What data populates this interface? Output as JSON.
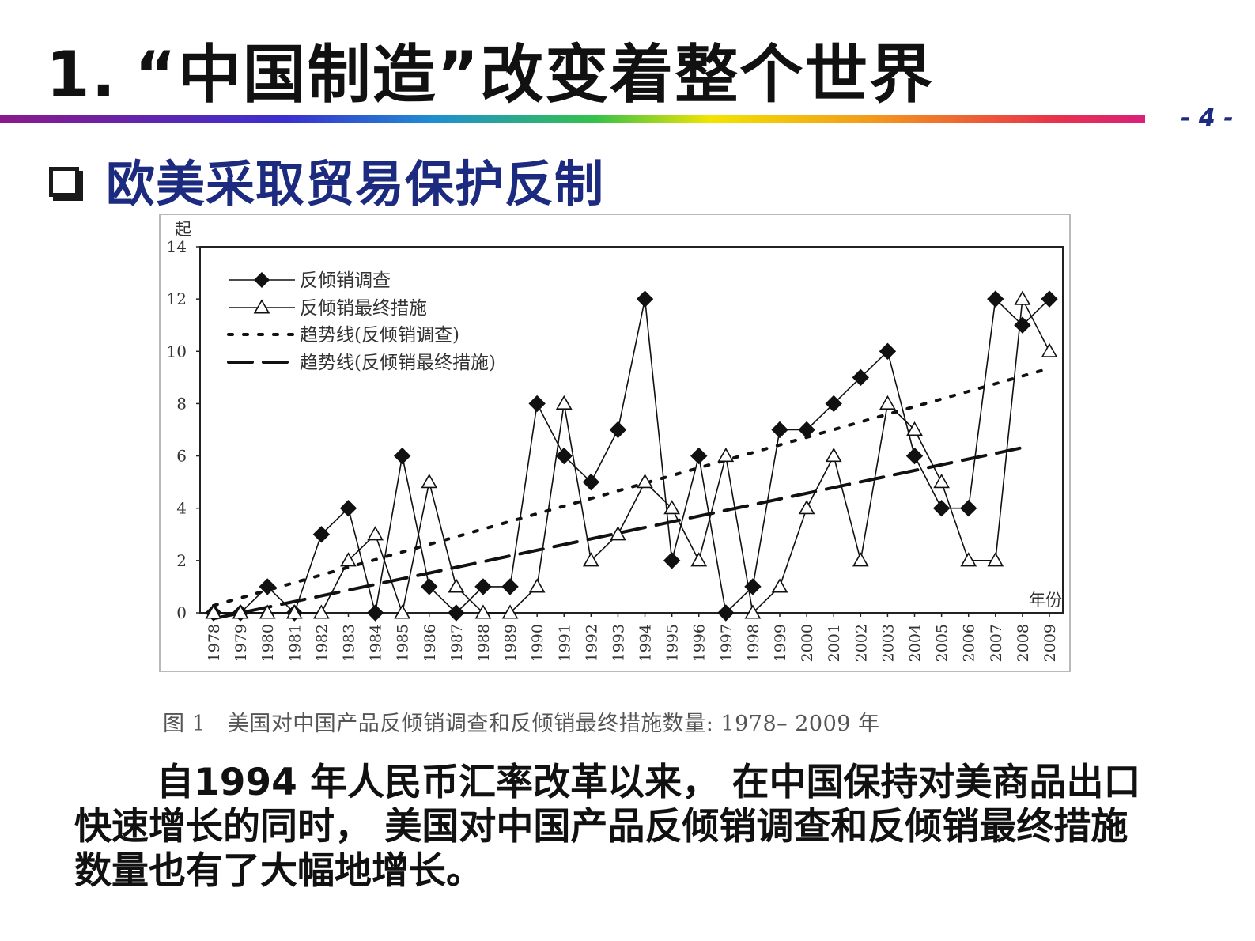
{
  "slide": {
    "title_number": "1.",
    "title_text": "“中国制造”改变着整个世界",
    "page_number": "- 4 -",
    "subtitle": "欧美采取贸易保护反制",
    "caption": "图 1　美国对中国产品反倾销调查和反倾销最终措施数量: 1978– 2009 年",
    "body": "自1994 年人民币汇率改革以来， 在中国保持对美商品出口快速增长的同时， 美国对中国产品反倾销调查和反倾销最终措施数量也有了大幅地增长。"
  },
  "colors": {
    "subtitle": "#1c2a80",
    "page_number": "#1c2a80",
    "rule_gradient": [
      "#8a1a8a",
      "#3b2fd0",
      "#1f8fd0",
      "#34c24a",
      "#f2e400",
      "#f39a1c",
      "#e8334a",
      "#d9207a"
    ]
  },
  "icons": {
    "subtitle_bullet": "checkbox-icon"
  },
  "chart_data": {
    "type": "line",
    "ylabel": "起",
    "xlabel": "年份",
    "ylim": [
      0,
      14
    ],
    "yticks": [
      0,
      2,
      4,
      6,
      8,
      10,
      12,
      14
    ],
    "x": [
      "1978",
      "1979",
      "1980",
      "1981",
      "1982",
      "1983",
      "1984",
      "1985",
      "1986",
      "1987",
      "1988",
      "1989",
      "1990",
      "1991",
      "1992",
      "1993",
      "1994",
      "1995",
      "1996",
      "1997",
      "1998",
      "1999",
      "2000",
      "2001",
      "2002",
      "2003",
      "2004",
      "2005",
      "2006",
      "2007",
      "2008",
      "2009"
    ],
    "series": [
      {
        "name": "反倾销调查",
        "marker": "filled-diamond",
        "style": "solid",
        "values": [
          0,
          0,
          1,
          0,
          3,
          4,
          0,
          6,
          1,
          0,
          1,
          1,
          8,
          6,
          5,
          7,
          12,
          2,
          6,
          0,
          1,
          7,
          7,
          8,
          9,
          10,
          6,
          4,
          4,
          12,
          11,
          12
        ]
      },
      {
        "name": "反倾销最终措施",
        "marker": "open-triangle",
        "style": "solid",
        "values": [
          0,
          0,
          0,
          0,
          0,
          2,
          3,
          0,
          5,
          1,
          0,
          0,
          1,
          8,
          2,
          3,
          5,
          4,
          2,
          6,
          0,
          1,
          4,
          6,
          2,
          8,
          7,
          5,
          2,
          2,
          12,
          10
        ]
      },
      {
        "name": "趋势线(反倾销调查)",
        "style": "dotted",
        "trend_of": "反倾销调查",
        "x_range": [
          "1978",
          "2009"
        ]
      },
      {
        "name": "趋势线(反倾销最终措施)",
        "style": "dashed",
        "trend_of": "反倾销最终措施",
        "x_range": [
          "1978",
          "2008"
        ]
      }
    ],
    "grid": false,
    "legend": "top-left"
  }
}
